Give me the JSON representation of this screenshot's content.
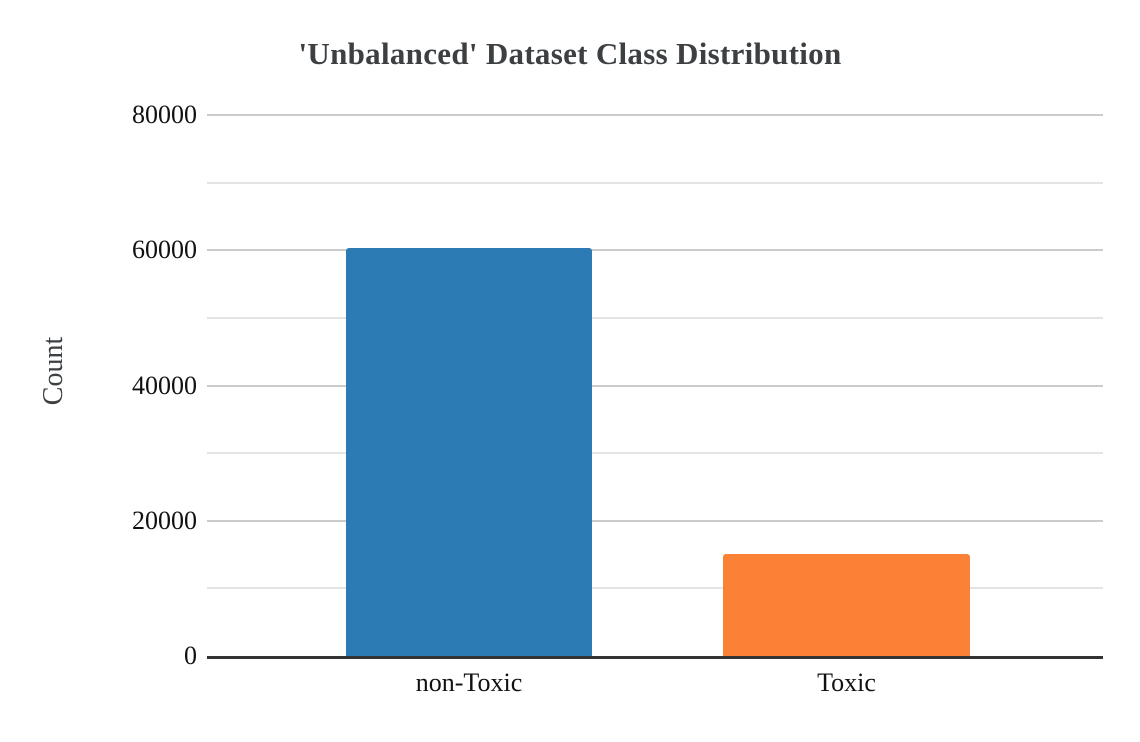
{
  "chart_data": {
    "type": "bar",
    "title": "'Unbalanced' Dataset Class Distribution",
    "ylabel": "Count",
    "xlabel": "",
    "categories": [
      "non-Toxic",
      "Toxic"
    ],
    "values": [
      60300,
      15100
    ],
    "ylim": [
      0,
      80000
    ],
    "yticks": [
      0,
      20000,
      40000,
      60000,
      80000
    ],
    "ytick_step_major": 20000,
    "ytick_step_minor": 10000,
    "grid": true,
    "legend": false,
    "bar_colors": [
      "#2d7bb5",
      "#fa8136"
    ],
    "colors": {
      "title": "#3d4043",
      "ylabel": "#3d4043",
      "axis_line": "#333333",
      "tick_labels": "#111111",
      "major_gridline": "#cbcbcb",
      "minor_gridline": "#e4e4e4",
      "background": "#ffffff"
    }
  }
}
